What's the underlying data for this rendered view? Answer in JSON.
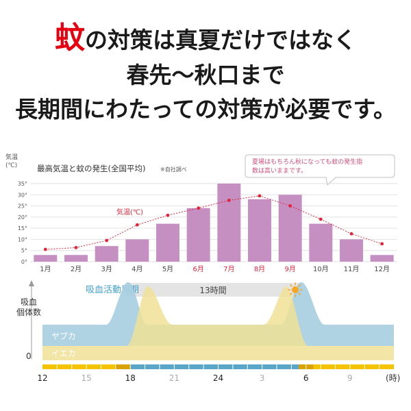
{
  "headline": {
    "line1_highlight": "蚊",
    "line1_rest": "の対策は真夏だけではなく",
    "line2": "春先〜秋口まで",
    "line3": "長期間にわたっての対策が必要です。"
  },
  "chart_data": [
    {
      "type": "bar",
      "title": "最高気温と蚊の発生(全国平均)",
      "title_note": "※自社調べ",
      "ylabel": "気温(℃)",
      "ylim": [
        0,
        35
      ],
      "yticks": [
        "0°",
        "5°",
        "10°",
        "15°",
        "20°",
        "25°",
        "30°",
        "35°"
      ],
      "categories": [
        "1月",
        "2月",
        "3月",
        "4月",
        "5月",
        "6月",
        "7月",
        "8月",
        "9月",
        "10月",
        "11月",
        "12月"
      ],
      "highlight_categories": [
        "6月",
        "7月",
        "8月",
        "9月"
      ],
      "series": [
        {
          "name": "",
          "type": "bar",
          "values": [
            3,
            3,
            7,
            10,
            17,
            24,
            35,
            28,
            30,
            17,
            10,
            3
          ],
          "color": "#c68fc2"
        },
        {
          "name": "気温(℃)",
          "type": "line",
          "values": [
            5.5,
            6.3,
            9.5,
            16.5,
            20.8,
            24,
            27.5,
            29.5,
            25,
            19,
            12.5,
            8
          ],
          "color": "#e0253b"
        }
      ],
      "callout": "夏場はもちろん秋になっても蚊の発生指数は高いままです。",
      "grid": true
    },
    {
      "type": "area",
      "title": "吸血活動周期",
      "ylabel": "吸血個体数",
      "y_zero_label": "0",
      "xlabel": "(時)",
      "x_ticks": [
        "12",
        "15",
        "18",
        "21",
        "24",
        "3",
        "6",
        "9"
      ],
      "span_label": "13時間",
      "series": [
        {
          "name": "ヤブカ",
          "color": "#a9cfe1"
        },
        {
          "name": "イエカ",
          "color": "#f0e096"
        }
      ],
      "icons": [
        "moon-icon",
        "sun-icon"
      ],
      "colors": {
        "day": "#f5c300",
        "dusk": "#d8a200",
        "night": "#5aa6c8"
      }
    }
  ]
}
